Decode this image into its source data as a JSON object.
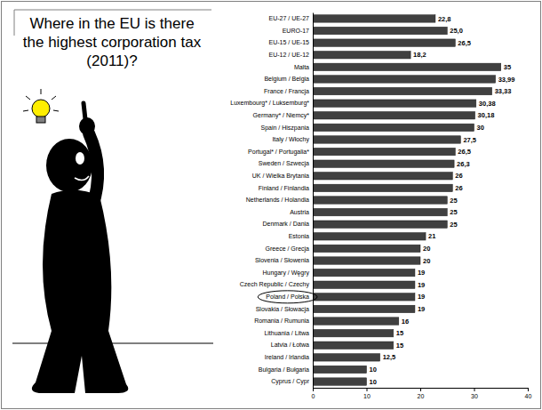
{
  "chart_data": {
    "type": "bar",
    "orientation": "horizontal",
    "title": "Where in the EU is there the highest corporation tax (2011)?",
    "categories": [
      "EU-27 / UE-27",
      "EURO-17",
      "EU-15 / UE-15",
      "EU-12 / UE-12",
      "Malta",
      "Belgium / Belgia",
      "France / Francja",
      "Luxembourg* / Luksemburg*",
      "Germany* / Niemcy*",
      "Spain / Hiszpania",
      "Italy / Włochy",
      "Portugal* / Portugalia*",
      "Sweden / Szwecja",
      "UK / Wielka Brytania",
      "Finland / Finlandia",
      "Netherlands / Holandia",
      "Austria",
      "Denmark / Dania",
      "Estonia",
      "Greece / Grecja",
      "Slovenia / Słowenia",
      "Hungary / Węgry",
      "Czech Republic / Czechy",
      "Poland / Polska",
      "Slovakia / Słowacja",
      "Romania / Rumunia",
      "Lithuania / Litwa",
      "Latvia / Łotwa",
      "Ireland / Irlandia",
      "Bulgaria / Bułgaria",
      "Cyprus / Cypr"
    ],
    "values": [
      22.8,
      25.0,
      26.5,
      18.2,
      35,
      33.99,
      33.33,
      30.38,
      30.18,
      30,
      27.5,
      26.5,
      26.3,
      26,
      26,
      25,
      25,
      25,
      21,
      20,
      20,
      19,
      19,
      19,
      19,
      16,
      15,
      15,
      12.5,
      10,
      10
    ],
    "value_labels": [
      "22,8",
      "25,0",
      "26,5",
      "18,2",
      "35",
      "33,99",
      "33,33",
      "30,38",
      "30,18",
      "30",
      "27,5",
      "26,5",
      "26,3",
      "26",
      "26",
      "25",
      "25",
      "25",
      "21",
      "20",
      "20",
      "19",
      "19",
      "19",
      "19",
      "16",
      "15",
      "15",
      "12,5",
      "10",
      "10"
    ],
    "color": "#404040",
    "xlim": [
      0,
      40
    ],
    "xticks": [
      0,
      10,
      20,
      30,
      40
    ],
    "grid": false,
    "data_labels": true
  }
}
